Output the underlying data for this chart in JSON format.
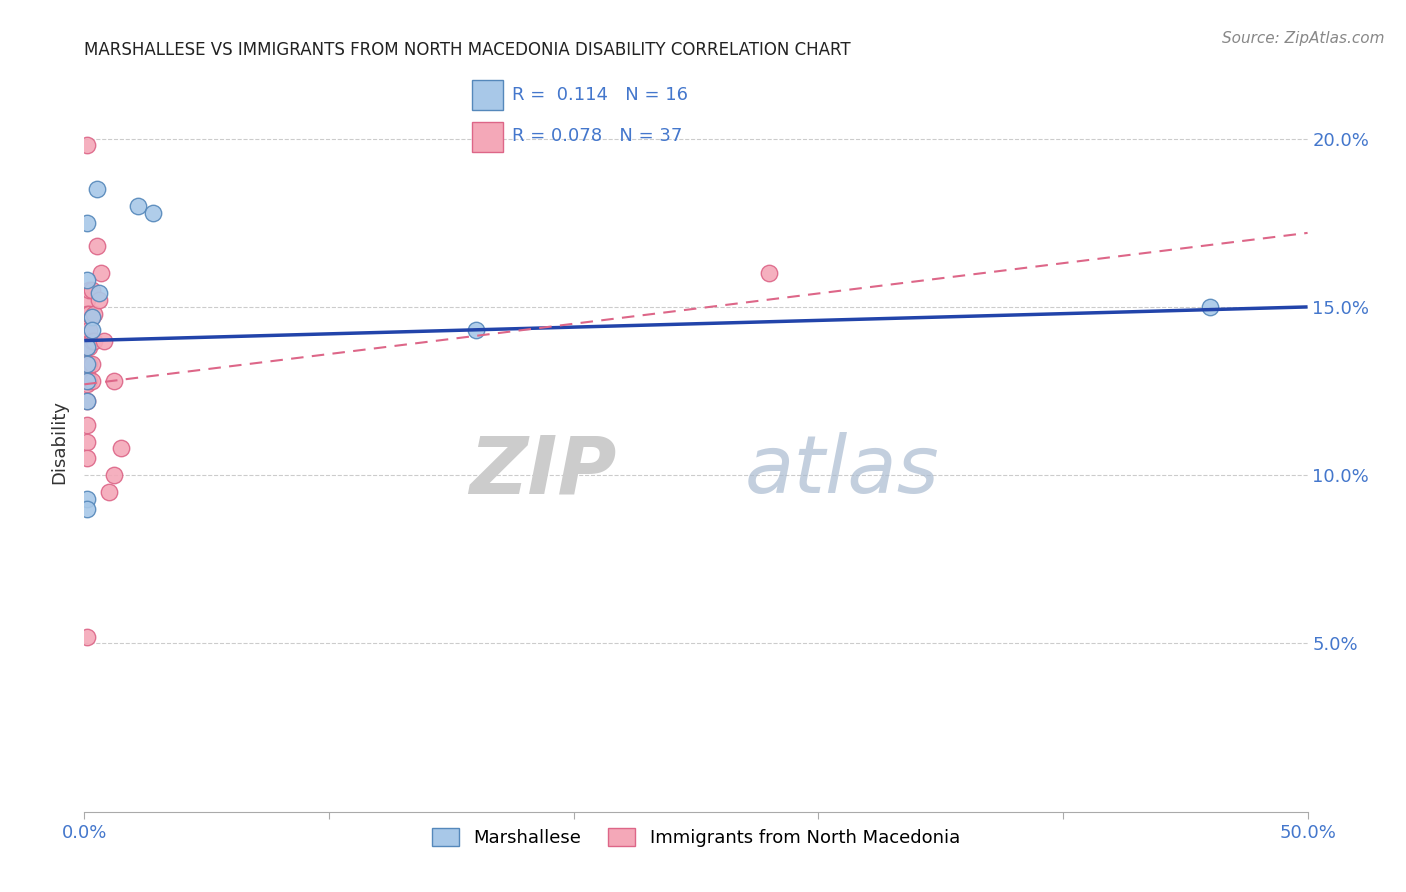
{
  "title": "MARSHALLESE VS IMMIGRANTS FROM NORTH MACEDONIA DISABILITY CORRELATION CHART",
  "source": "Source: ZipAtlas.com",
  "ylabel": "Disability",
  "xlim": [
    0.0,
    0.5
  ],
  "ylim": [
    0.0,
    0.22
  ],
  "xtick_positions": [
    0.0,
    0.1,
    0.2,
    0.3,
    0.4,
    0.5
  ],
  "xtick_labels": [
    "0.0%",
    "",
    "",
    "",
    "",
    "50.0%"
  ],
  "ytick_positions": [
    0.05,
    0.1,
    0.15,
    0.2
  ],
  "ytick_labels": [
    "5.0%",
    "10.0%",
    "15.0%",
    "20.0%"
  ],
  "blue_label": "Marshallese",
  "pink_label": "Immigrants from North Macedonia",
  "blue_R": "0.114",
  "blue_N": "16",
  "pink_R": "0.078",
  "pink_N": "37",
  "blue_color": "#A8C8E8",
  "pink_color": "#F4A8B8",
  "blue_edge": "#5588BB",
  "pink_edge": "#DD6688",
  "blue_line_color": "#2244AA",
  "pink_line_color": "#DD6688",
  "blue_scatter_x": [
    0.001,
    0.005,
    0.022,
    0.028,
    0.001,
    0.006,
    0.003,
    0.003,
    0.001,
    0.001,
    0.16,
    0.46,
    0.001,
    0.001,
    0.001,
    0.001
  ],
  "blue_scatter_y": [
    0.175,
    0.185,
    0.18,
    0.178,
    0.158,
    0.154,
    0.147,
    0.143,
    0.138,
    0.133,
    0.143,
    0.15,
    0.128,
    0.122,
    0.093,
    0.09
  ],
  "pink_scatter_x": [
    0.001,
    0.001,
    0.001,
    0.001,
    0.001,
    0.001,
    0.001,
    0.001,
    0.001,
    0.001,
    0.001,
    0.002,
    0.002,
    0.002,
    0.002,
    0.002,
    0.002,
    0.003,
    0.003,
    0.003,
    0.003,
    0.003,
    0.004,
    0.004,
    0.005,
    0.006,
    0.007,
    0.008,
    0.01,
    0.012,
    0.012,
    0.015,
    0.001,
    0.001,
    0.001,
    0.28,
    0.001
  ],
  "pink_scatter_y": [
    0.198,
    0.152,
    0.148,
    0.145,
    0.142,
    0.14,
    0.138,
    0.133,
    0.13,
    0.127,
    0.122,
    0.155,
    0.148,
    0.143,
    0.138,
    0.133,
    0.128,
    0.155,
    0.147,
    0.14,
    0.133,
    0.128,
    0.148,
    0.14,
    0.168,
    0.152,
    0.16,
    0.14,
    0.095,
    0.1,
    0.128,
    0.108,
    0.115,
    0.11,
    0.105,
    0.16,
    0.052
  ],
  "blue_line_x0": 0.0,
  "blue_line_y0": 0.14,
  "blue_line_x1": 0.5,
  "blue_line_y1": 0.15,
  "pink_line_x0": 0.0,
  "pink_line_y0": 0.127,
  "pink_line_x1": 0.5,
  "pink_line_y1": 0.172,
  "watermark_zip": "ZIP",
  "watermark_atlas": "atlas",
  "grid_color": "#CCCCCC",
  "background_color": "#FFFFFF"
}
